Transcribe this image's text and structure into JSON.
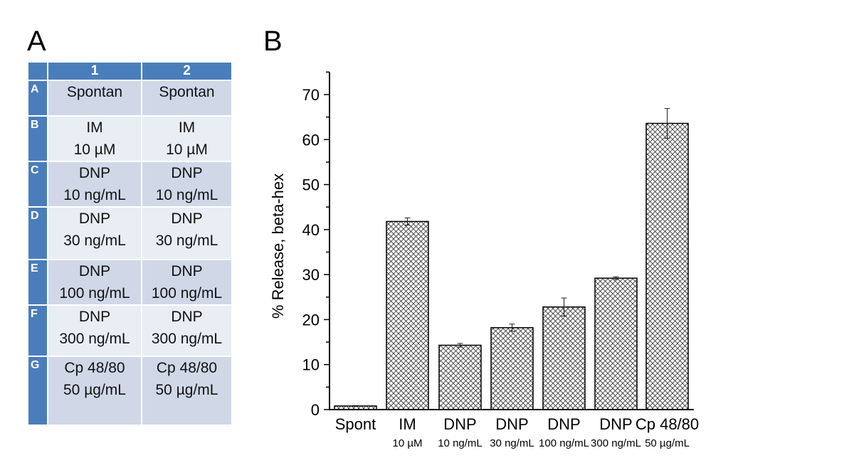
{
  "panel_a": {
    "label": "A",
    "columns": [
      "1",
      "2"
    ],
    "rows": [
      {
        "id": "A",
        "cells": [
          [
            "Spontan"
          ],
          [
            "Spontan"
          ]
        ]
      },
      {
        "id": "B",
        "cells": [
          [
            "IM",
            "10 µM"
          ],
          [
            "IM",
            "10 µM"
          ]
        ]
      },
      {
        "id": "C",
        "cells": [
          [
            "DNP",
            "10 ng/mL"
          ],
          [
            "DNP",
            "10 ng/mL"
          ]
        ]
      },
      {
        "id": "D",
        "cells": [
          [
            "DNP",
            "30 ng/mL"
          ],
          [
            "DNP",
            "30 ng/mL"
          ]
        ]
      },
      {
        "id": "E",
        "cells": [
          [
            "DNP",
            "100 ng/mL"
          ],
          [
            "DNP",
            "100 ng/mL"
          ]
        ]
      },
      {
        "id": "F",
        "cells": [
          [
            "DNP",
            "300 ng/mL"
          ],
          [
            "DNP",
            "300 ng/mL"
          ]
        ]
      },
      {
        "id": "G",
        "cells": [
          [
            "Cp 48/80",
            "50 µg/mL"
          ],
          [
            "Cp 48/80",
            "50 µg/mL"
          ]
        ]
      }
    ]
  },
  "panel_b": {
    "label": "B"
  },
  "chart_data": {
    "type": "bar",
    "title": "",
    "xlabel": "",
    "ylabel": "% Release, beta-hex",
    "categories": [
      "Spont",
      "IM",
      "DNP",
      "DNP",
      "DNP",
      "DNP",
      "Cp 48/80"
    ],
    "sublabels": [
      "",
      "10 µM",
      "10 ng/mL",
      "30 ng/mL",
      "100 ng/mL",
      "300 ng/mL",
      "50 µg/mL"
    ],
    "values": [
      0.8,
      41.8,
      14.3,
      18.2,
      22.8,
      29.2,
      63.6
    ],
    "errors": [
      0.1,
      0.8,
      0.4,
      0.8,
      2.0,
      0.3,
      3.3
    ],
    "ylim": [
      0,
      75
    ],
    "yticks": [
      0,
      10,
      20,
      30,
      40,
      50,
      60,
      70
    ],
    "grid": false,
    "fill": "crosshatch"
  }
}
